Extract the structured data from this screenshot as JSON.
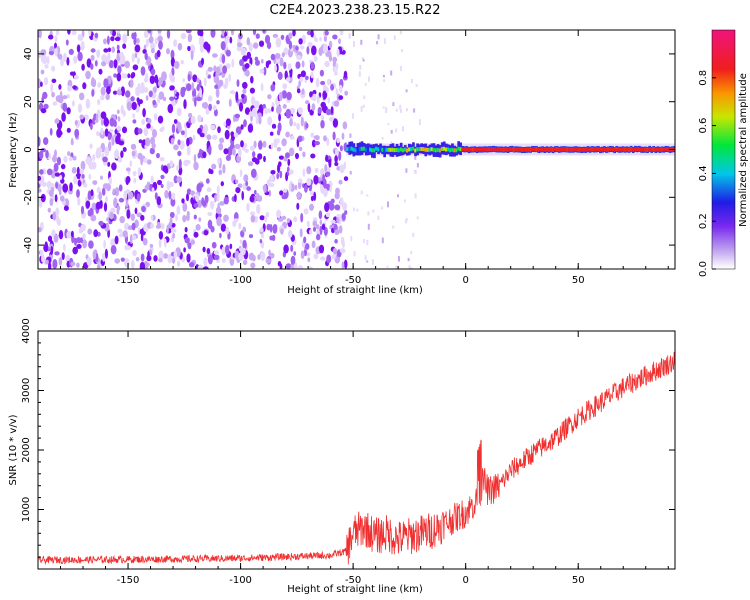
{
  "title": "C2E4.2023.238.23.15.R22",
  "chart_data": [
    {
      "type": "heatmap",
      "xlabel": "Height of straight line (km)",
      "ylabel": "Frequency (Hz)",
      "xlim": [
        -190,
        93
      ],
      "ylim": [
        -50,
        50
      ],
      "xticks": [
        -150,
        -100,
        -50,
        0,
        50
      ],
      "xtick_labels": [
        "-150",
        "-100",
        "-50",
        "0",
        "50"
      ],
      "yticks": [
        -40,
        -20,
        0,
        20,
        40
      ],
      "ytick_labels": [
        "-40",
        "-20",
        "0",
        "20",
        "40"
      ],
      "colorbar": {
        "label": "Normalized spectral amplitude",
        "range": [
          0,
          1
        ],
        "ticks": [
          0,
          0.2,
          0.4,
          0.6,
          0.8
        ],
        "tick_labels": [
          "0.0",
          "0.2",
          "0.4",
          "0.6",
          "0.8"
        ]
      },
      "features": {
        "noise_region_x": [
          -190,
          -53
        ],
        "signal_start_x": -53,
        "signal_frequency_hz": 0
      }
    },
    {
      "type": "line",
      "xlabel": "Height of straight line (km)",
      "ylabel": "SNR (10 * v/v)",
      "xlim": [
        -190,
        93
      ],
      "ylim": [
        0,
        4000
      ],
      "xticks": [
        -150,
        -100,
        -50,
        0,
        50
      ],
      "xtick_labels": [
        "-150",
        "-100",
        "-50",
        "0",
        "50"
      ],
      "yticks": [
        1000,
        2000,
        3000,
        4000
      ],
      "ytick_labels": [
        "1000",
        "2000",
        "3000",
        "4000"
      ],
      "series_color": "#f03030",
      "series": [
        {
          "x": [
            -190,
            -150,
            -100,
            -60,
            -53,
            -50,
            -45,
            -40,
            -35,
            -30,
            -25,
            -20,
            -15,
            -10,
            -5,
            0,
            5,
            8,
            10,
            15,
            20,
            30,
            40,
            50,
            60,
            70,
            80,
            93
          ],
          "y": [
            150,
            160,
            180,
            230,
            300,
            600,
            700,
            550,
            600,
            500,
            550,
            600,
            650,
            750,
            850,
            950,
            1150,
            1500,
            1300,
            1400,
            1650,
            1950,
            2200,
            2550,
            2800,
            3050,
            3250,
            3500
          ]
        }
      ]
    }
  ]
}
